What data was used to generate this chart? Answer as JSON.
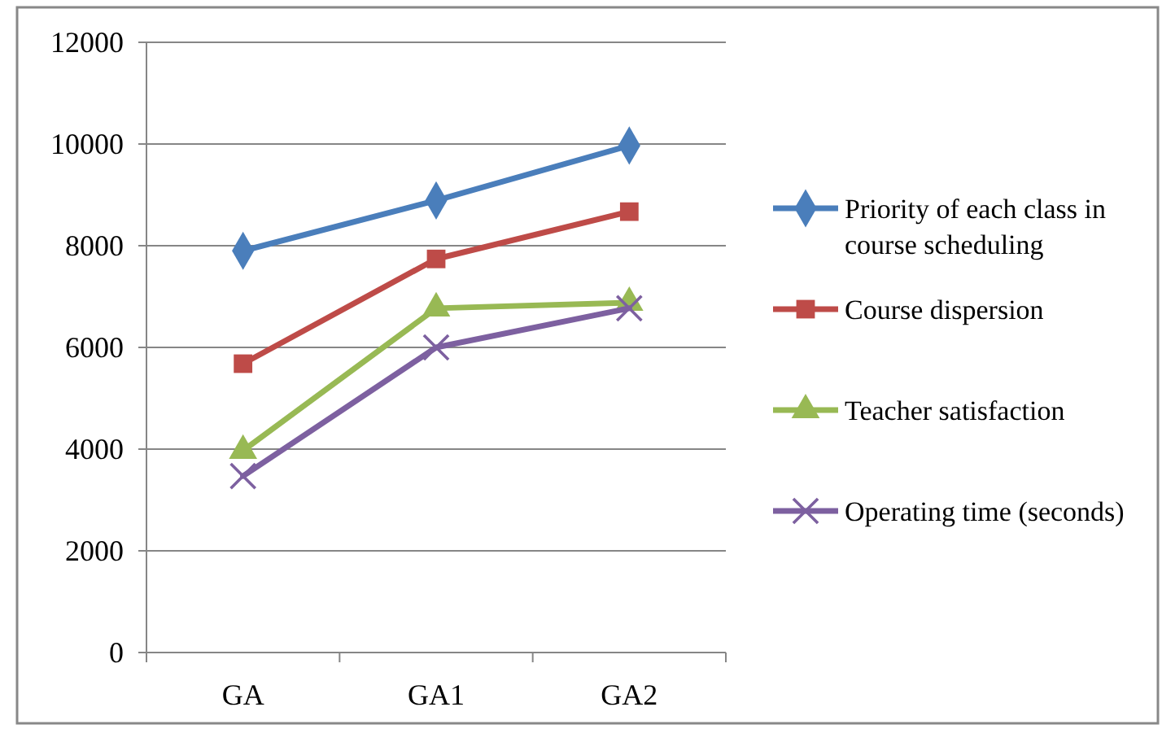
{
  "chart_data": {
    "type": "line",
    "categories": [
      "GA",
      "GA1",
      "GA2"
    ],
    "series": [
      {
        "name": "Priority of each class in course scheduling",
        "color": "#4a7ebb",
        "marker": "diamond",
        "values": [
          7900,
          8890,
          9970
        ]
      },
      {
        "name": "Course dispersion",
        "color": "#be4b48",
        "marker": "square",
        "values": [
          5680,
          7740,
          8670
        ]
      },
      {
        "name": "Teacher satisfaction",
        "color": "#98b954",
        "marker": "triangle",
        "values": [
          3970,
          6770,
          6880
        ]
      },
      {
        "name": "Operating time (seconds)",
        "color": "#7d60a0",
        "marker": "cross",
        "values": [
          3470,
          6000,
          6770
        ]
      }
    ],
    "ylim": [
      0,
      12000
    ],
    "yticks": [
      0,
      2000,
      4000,
      6000,
      8000,
      10000,
      12000
    ],
    "grid": "y",
    "legend": "right"
  }
}
